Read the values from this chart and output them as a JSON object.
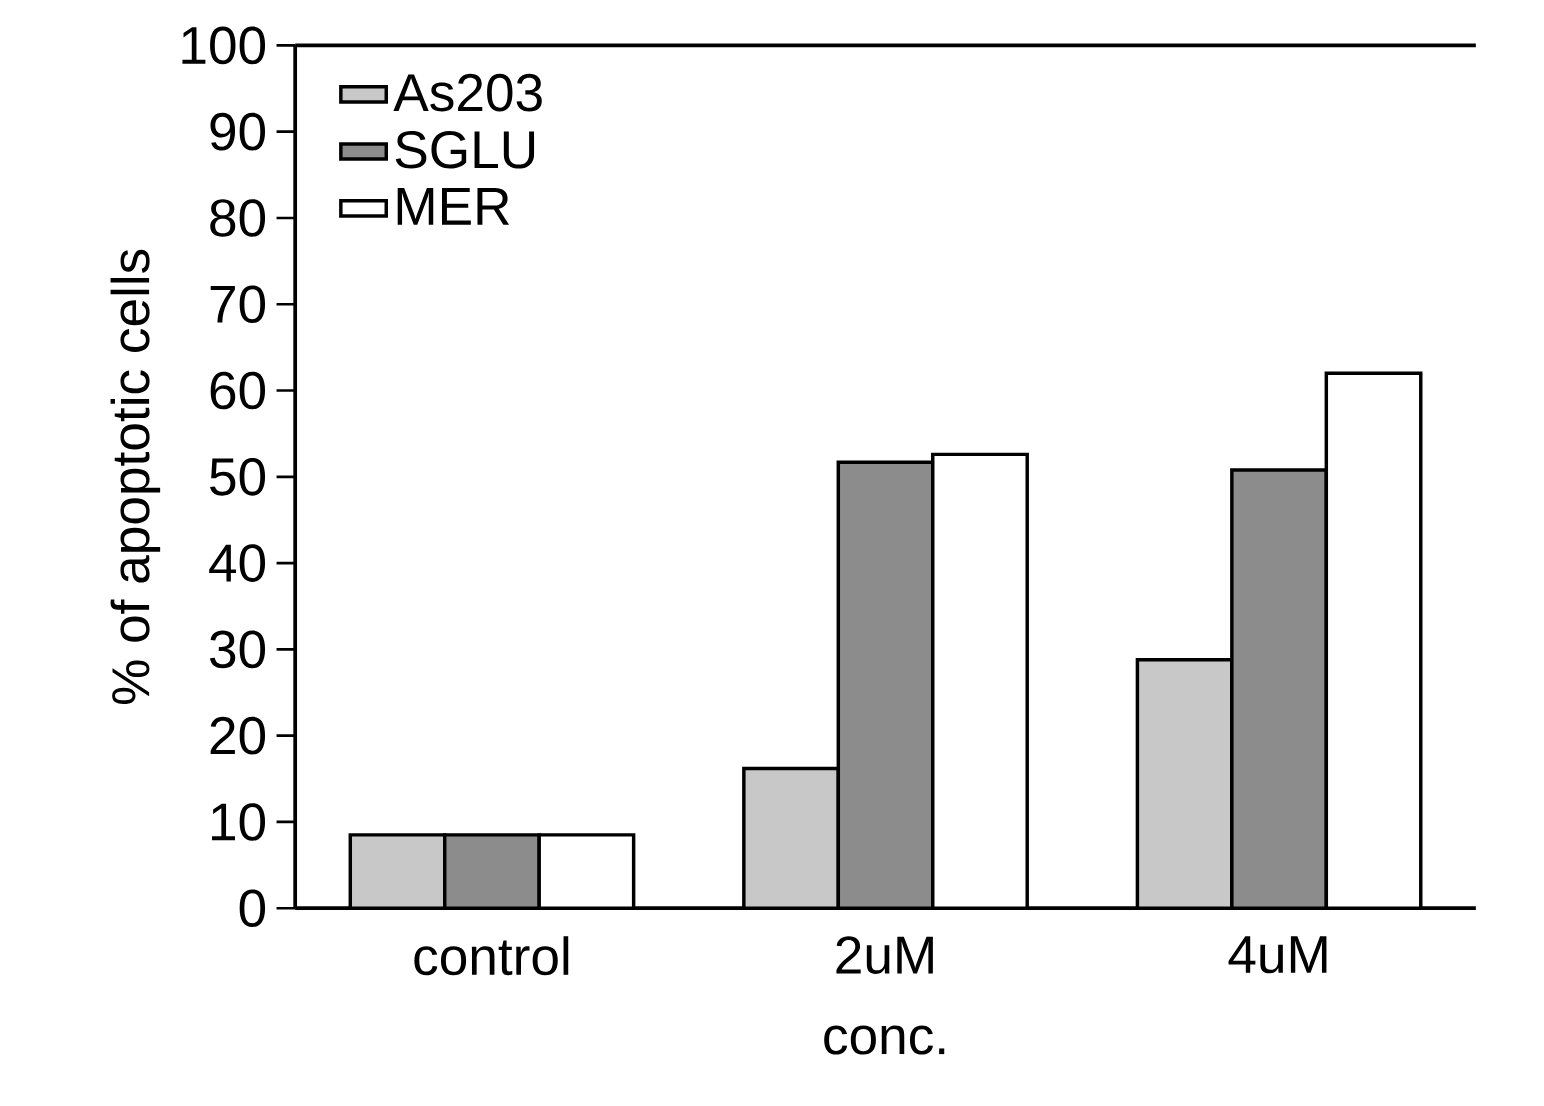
{
  "chart_data": {
    "type": "bar",
    "xlabel": "conc.",
    "ylabel": "% of apoptotic cells",
    "categories": [
      "control",
      "2uM",
      "4uM"
    ],
    "series": [
      {
        "name": "As203",
        "color": "#c8c8c8",
        "values": [
          8.5,
          16.2,
          28.8
        ]
      },
      {
        "name": "SGLU",
        "color": "#8c8c8c",
        "values": [
          8.5,
          51.7,
          50.8
        ]
      },
      {
        "name": "MER",
        "color": "#ffffff",
        "values": [
          8.5,
          52.6,
          62
        ]
      }
    ],
    "ylim": [
      0,
      100
    ],
    "yticks": [
      0,
      10,
      20,
      30,
      40,
      50,
      60,
      70,
      80,
      90,
      100
    ],
    "grid": false,
    "legend": "top left"
  }
}
